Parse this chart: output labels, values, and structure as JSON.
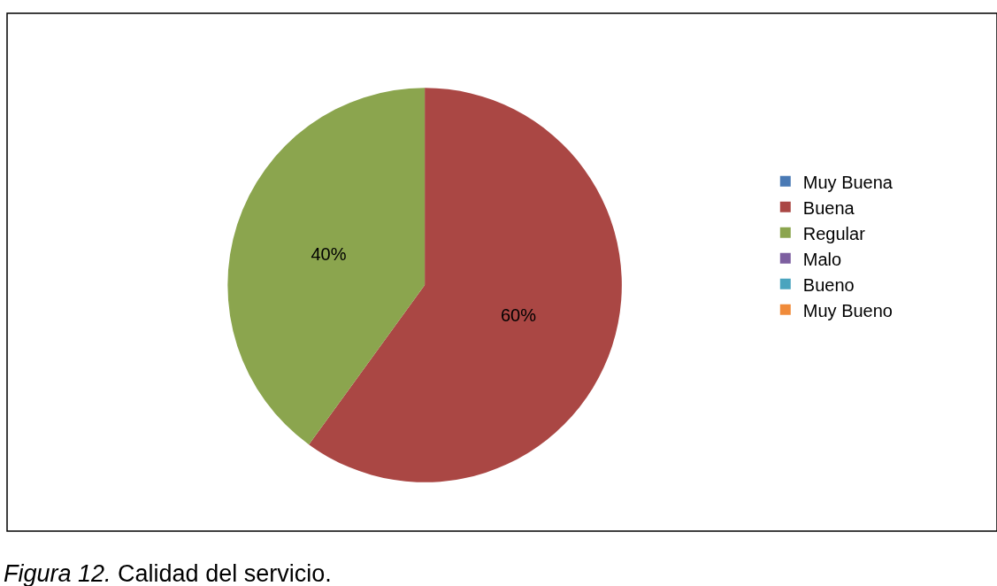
{
  "chart_data": {
    "type": "pie",
    "categories": [
      "Muy Buena",
      "Buena",
      "Regular",
      "Malo",
      "Bueno",
      "Muy Bueno"
    ],
    "values": [
      0,
      60,
      40,
      0,
      0,
      0
    ],
    "value_labels": [
      null,
      "60%",
      "40%",
      null,
      null,
      null
    ],
    "colors": [
      "#4a7ab5",
      "#aa4744",
      "#8ba54e",
      "#7d5fa0",
      "#4aa4be",
      "#f08b3a"
    ],
    "legend": "right",
    "annotations": [
      "Figura 12.",
      "Calidad del servicio."
    ]
  }
}
